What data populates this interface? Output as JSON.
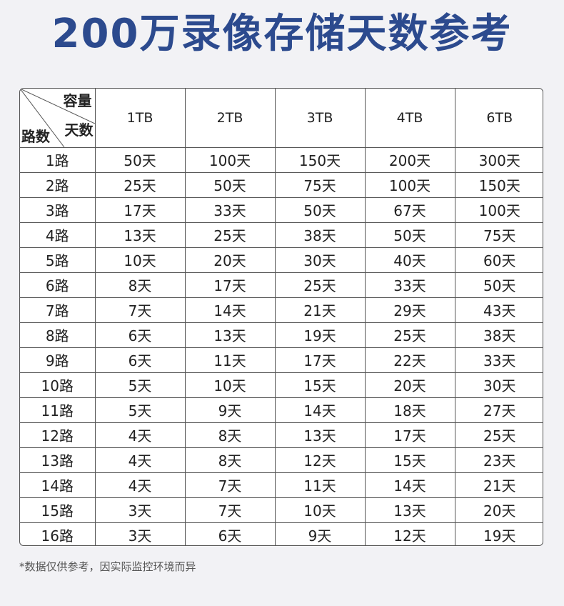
{
  "title": "200万录像存储天数参考",
  "table": {
    "corner": {
      "top": "容量",
      "middle": "天数",
      "bottom": "路数"
    },
    "columns": [
      "1TB",
      "2TB",
      "3TB",
      "4TB",
      "6TB"
    ],
    "rows": [
      {
        "label": "1路",
        "cells": [
          "50天",
          "100天",
          "150天",
          "200天",
          "300天"
        ]
      },
      {
        "label": "2路",
        "cells": [
          "25天",
          "50天",
          "75天",
          "100天",
          "150天"
        ]
      },
      {
        "label": "3路",
        "cells": [
          "17天",
          "33天",
          "50天",
          "67天",
          "100天"
        ]
      },
      {
        "label": "4路",
        "cells": [
          "13天",
          "25天",
          "38天",
          "50天",
          "75天"
        ]
      },
      {
        "label": "5路",
        "cells": [
          "10天",
          "20天",
          "30天",
          "40天",
          "60天"
        ]
      },
      {
        "label": "6路",
        "cells": [
          "8天",
          "17天",
          "25天",
          "33天",
          "50天"
        ]
      },
      {
        "label": "7路",
        "cells": [
          "7天",
          "14天",
          "21天",
          "29天",
          "43天"
        ]
      },
      {
        "label": "8路",
        "cells": [
          "6天",
          "13天",
          "19天",
          "25天",
          "38天"
        ]
      },
      {
        "label": "9路",
        "cells": [
          "6天",
          "11天",
          "17天",
          "22天",
          "33天"
        ]
      },
      {
        "label": "10路",
        "cells": [
          "5天",
          "10天",
          "15天",
          "20天",
          "30天"
        ]
      },
      {
        "label": "11路",
        "cells": [
          "5天",
          "9天",
          "14天",
          "18天",
          "27天"
        ]
      },
      {
        "label": "12路",
        "cells": [
          "4天",
          "8天",
          "13天",
          "17天",
          "25天"
        ]
      },
      {
        "label": "13路",
        "cells": [
          "4天",
          "8天",
          "12天",
          "15天",
          "23天"
        ]
      },
      {
        "label": "14路",
        "cells": [
          "4天",
          "7天",
          "11天",
          "14天",
          "21天"
        ]
      },
      {
        "label": "15路",
        "cells": [
          "3天",
          "7天",
          "10天",
          "13天",
          "20天"
        ]
      },
      {
        "label": "16路",
        "cells": [
          "3天",
          "6天",
          "9天",
          "12天",
          "19天"
        ]
      }
    ]
  },
  "footnote": "*数据仅供参考，因实际监控环境而异"
}
